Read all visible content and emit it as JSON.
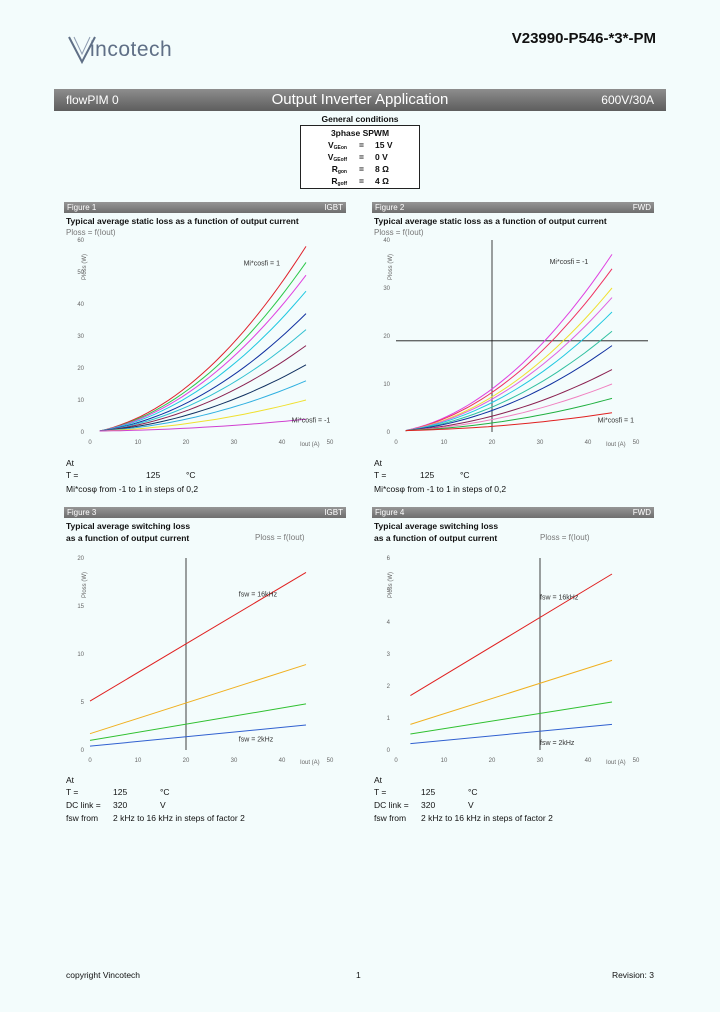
{
  "header": {
    "logo_text": "incotech",
    "part_number": "V23990-P546-*3*-PM"
  },
  "banner": {
    "left": "flowPIM 0",
    "title": "Output Inverter Application",
    "right": "600V/30A"
  },
  "general_conditions": {
    "title": "General conditions",
    "heading": "3phase SPWM",
    "rows": [
      {
        "sym": "V",
        "sub": "GEon",
        "eq": "=",
        "val": "15 V"
      },
      {
        "sym": "V",
        "sub": "GEoff",
        "eq": "=",
        "val": "0 V"
      },
      {
        "sym": "R",
        "sub": "gon",
        "eq": "=",
        "val": "8 Ω"
      },
      {
        "sym": "R",
        "sub": "goff",
        "eq": "=",
        "val": "4 Ω"
      }
    ]
  },
  "figures": [
    {
      "label": "Figure 1",
      "tag": "IGBT",
      "title1": "Typical average static loss as a function of output current",
      "title2": "",
      "formula": "Ploss = f(Iout)",
      "cond": [
        "At",
        "T   =",
        "125",
        "°C",
        "Mi*cosφ from -1 to 1 in steps of 0,2"
      ]
    },
    {
      "label": "Figure 2",
      "tag": "FWD",
      "title1": "Typical average static loss as a function of output current",
      "title2": "",
      "formula": "Ploss = f(Iout)",
      "cond": [
        "At",
        "T   =",
        "125",
        "°C",
        "Mi*cosφ from -1 to 1 in steps of 0,2"
      ]
    },
    {
      "label": "Figure 3",
      "tag": "IGBT",
      "title1": "Typical average switching loss",
      "title2": "as a function of output current",
      "formula": "Ploss = f(Iout)",
      "cond": [
        "At",
        "T   =",
        "125",
        "°C",
        "DC link =",
        "320",
        "V",
        "fsw from",
        "2 kHz to 16 kHz in steps of factor 2"
      ]
    },
    {
      "label": "Figure 4",
      "tag": "FWD",
      "title1": "Typical average switching loss",
      "title2": "as a function of output current",
      "formula": "Ploss = f(Iout)",
      "cond": [
        "At",
        "T   =",
        "125",
        "°C",
        "DC link =",
        "320",
        "V",
        "fsw from",
        "2 kHz to 16 kHz in steps of factor 2"
      ]
    }
  ],
  "chart_data": [
    {
      "type": "line",
      "title": "Typical average static loss as a function of output current",
      "xlabel": "Iout (A)",
      "ylabel": "Ploss (W)",
      "x_ticks": [
        "0",
        "10",
        "20",
        "30",
        "40",
        "50"
      ],
      "y_ticks": [
        "0",
        "10",
        "20",
        "30",
        "40",
        "50",
        "60"
      ],
      "xlim": [
        0,
        50
      ],
      "ylim": [
        0,
        60
      ],
      "annotations": [
        "Mi*cosfi = 1",
        "Mi*cosfi = -1"
      ],
      "series": [
        {
          "name": "Mi*cosfi = 1",
          "color": "#e0202a",
          "end_y": 58
        },
        {
          "name": "0.8",
          "color": "#2cc84a",
          "end_y": 53
        },
        {
          "name": "0.6",
          "color": "#e040e0",
          "end_y": 49
        },
        {
          "name": "0.4",
          "color": "#20c8e0",
          "end_y": 44
        },
        {
          "name": "0.2",
          "color": "#1030a0",
          "end_y": 37
        },
        {
          "name": "0",
          "color": "#30c0d0",
          "end_y": 32
        },
        {
          "name": "-0.2",
          "color": "#8a2050",
          "end_y": 27
        },
        {
          "name": "-0.4",
          "color": "#103060",
          "end_y": 21
        },
        {
          "name": "-0.6",
          "color": "#30b0e0",
          "end_y": 16
        },
        {
          "name": "-0.8",
          "color": "#f0e030",
          "end_y": 10
        },
        {
          "name": "Mi*cosfi = -1",
          "color": "#d040d0",
          "end_y": 4
        }
      ]
    },
    {
      "type": "line",
      "title": "Typical average static loss as a function of output current",
      "xlabel": "Iout (A)",
      "ylabel": "Ploss (W)",
      "x_ticks": [
        "0",
        "10",
        "20",
        "30",
        "40",
        "50"
      ],
      "y_ticks": [
        "0",
        "10",
        "20",
        "30",
        "40"
      ],
      "xlim": [
        0,
        50
      ],
      "ylim": [
        0,
        40
      ],
      "annotations": [
        "Mi*cosfi = -1",
        "Mi*cosfi = 1"
      ],
      "series": [
        {
          "name": "Mi*cosfi = -1",
          "color": "#e040e0",
          "end_y": 37
        },
        {
          "name": "-0.8",
          "color": "#f03060",
          "end_y": 34
        },
        {
          "name": "-0.6",
          "color": "#f0e030",
          "end_y": 30
        },
        {
          "name": "-0.4",
          "color": "#e060e0",
          "end_y": 28
        },
        {
          "name": "-0.2",
          "color": "#20c8e0",
          "end_y": 25
        },
        {
          "name": "0",
          "color": "#30c0a0",
          "end_y": 21
        },
        {
          "name": "0.2",
          "color": "#1030a0",
          "end_y": 18
        },
        {
          "name": "0.4",
          "color": "#8a2050",
          "end_y": 13
        },
        {
          "name": "0.6",
          "color": "#f080c0",
          "end_y": 10
        },
        {
          "name": "0.8",
          "color": "#20b040",
          "end_y": 7
        },
        {
          "name": "Mi*cosfi = 1",
          "color": "#e02020",
          "end_y": 4
        }
      ]
    },
    {
      "type": "line",
      "title": "Typical average switching loss as a function of output current",
      "xlabel": "Iout (A)",
      "ylabel": "Ploss (W)",
      "x_ticks": [
        "0",
        "10",
        "20",
        "30",
        "40",
        "50"
      ],
      "y_ticks": [
        "0",
        "5",
        "10",
        "15",
        "20"
      ],
      "xlim": [
        0,
        50
      ],
      "ylim": [
        0,
        20
      ],
      "annotations": [
        "fsw = 16kHz",
        "fsw = 2kHz"
      ],
      "series": [
        {
          "name": "16 kHz",
          "color": "#e02020",
          "x": [
            0,
            45
          ],
          "y": [
            5.1,
            18.5
          ]
        },
        {
          "name": "8 kHz",
          "color": "#f0b020",
          "x": [
            0,
            45
          ],
          "y": [
            1.7,
            8.9
          ]
        },
        {
          "name": "4 kHz",
          "color": "#30c030",
          "x": [
            0,
            45
          ],
          "y": [
            1.0,
            4.8
          ]
        },
        {
          "name": "2 kHz",
          "color": "#3060d0",
          "x": [
            0,
            45
          ],
          "y": [
            0.4,
            2.6
          ]
        }
      ]
    },
    {
      "type": "line",
      "title": "Typical average switching loss as a function of output current",
      "xlabel": "Iout (A)",
      "ylabel": "Ploss (W)",
      "x_ticks": [
        "0",
        "10",
        "20",
        "30",
        "40",
        "50"
      ],
      "y_ticks": [
        "0",
        "1",
        "2",
        "3",
        "4",
        "5",
        "6"
      ],
      "xlim": [
        0,
        50
      ],
      "ylim": [
        0,
        6
      ],
      "annotations": [
        "fsw = 16kHz",
        "fsw = 2kHz"
      ],
      "series": [
        {
          "name": "16 kHz",
          "color": "#e02020",
          "x": [
            3,
            45
          ],
          "y": [
            1.7,
            5.5
          ]
        },
        {
          "name": "8 kHz",
          "color": "#f0b020",
          "x": [
            3,
            45
          ],
          "y": [
            0.8,
            2.8
          ]
        },
        {
          "name": "4 kHz",
          "color": "#30c030",
          "x": [
            3,
            45
          ],
          "y": [
            0.5,
            1.5
          ]
        },
        {
          "name": "2 kHz",
          "color": "#3060d0",
          "x": [
            3,
            45
          ],
          "y": [
            0.2,
            0.8
          ]
        }
      ]
    }
  ],
  "footer": {
    "left": "copyright Vincotech",
    "center": "1",
    "right": "Revision: 3"
  }
}
